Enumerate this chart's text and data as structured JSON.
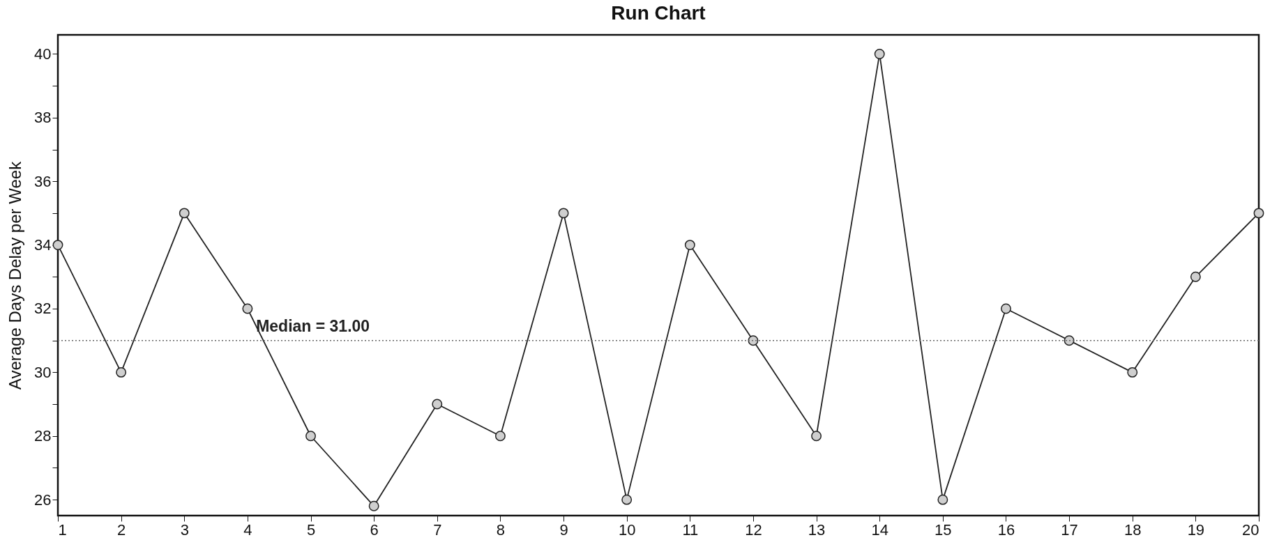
{
  "chart_data": {
    "type": "line",
    "title": "Run Chart",
    "ylabel": "Average Days Delay per Week",
    "x": [
      1,
      2,
      3,
      4,
      5,
      6,
      7,
      8,
      9,
      10,
      11,
      12,
      13,
      14,
      15,
      16,
      17,
      18,
      19,
      20
    ],
    "series": [
      {
        "color": "#222222",
        "values": [
          34,
          30,
          35,
          32,
          28,
          25.8,
          29,
          28,
          35,
          26,
          34,
          31,
          28,
          40,
          26,
          32,
          31,
          30,
          33,
          35
        ]
      }
    ],
    "xlim": [
      1,
      20
    ],
    "xticks": [
      1,
      2,
      3,
      4,
      5,
      6,
      7,
      8,
      9,
      10,
      11,
      12,
      13,
      14,
      15,
      16,
      17,
      18,
      19,
      20
    ],
    "ylim": [
      25.5,
      40.6
    ],
    "yticks": [
      26,
      {
        "value": 27,
        "label": null
      },
      28,
      {
        "value": 29,
        "label": null
      },
      30,
      {
        "value": 31,
        "label": null
      },
      32,
      {
        "value": 33,
        "label": null
      },
      34,
      {
        "value": 35,
        "label": null
      },
      36,
      {
        "value": 37,
        "label": null
      },
      38,
      {
        "value": 39,
        "label": null
      },
      40
    ],
    "ref_lines": [
      {
        "axis": "y",
        "value": 31,
        "label": "Median = 31.00",
        "color": "#666666",
        "line_style": "dotted"
      }
    ],
    "marker": "circle",
    "line_style": "solid",
    "grid": false
  }
}
